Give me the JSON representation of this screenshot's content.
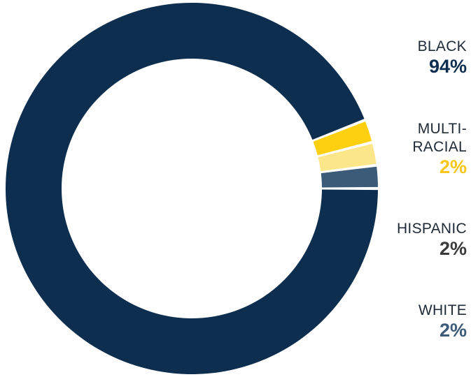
{
  "chart_data": {
    "type": "pie",
    "variant": "donut",
    "categories": [
      "BLACK",
      "MULTI-RACIAL",
      "HISPANIC",
      "WHITE"
    ],
    "values": [
      94,
      2,
      2,
      2
    ],
    "value_labels": [
      "94%",
      "2%",
      "2%",
      "2%"
    ],
    "title": "",
    "legend_placement": "right"
  },
  "legend": [
    {
      "label_lines": [
        "BLACK"
      ],
      "value": "94%",
      "color": "#0d2e4f"
    },
    {
      "label_lines": [
        "MULTI-",
        "RACIAL"
      ],
      "value": "2%",
      "color": "#f7c61a"
    },
    {
      "label_lines": [
        "HISPANIC"
      ],
      "value": "2%",
      "color": "#3a3a3a"
    },
    {
      "label_lines": [
        "WHITE"
      ],
      "value": "2%",
      "color": "#3b5b79"
    }
  ],
  "segment_colors": [
    "#0d2e4f",
    "#fccf10",
    "#fce68a",
    "#3b5b79"
  ]
}
